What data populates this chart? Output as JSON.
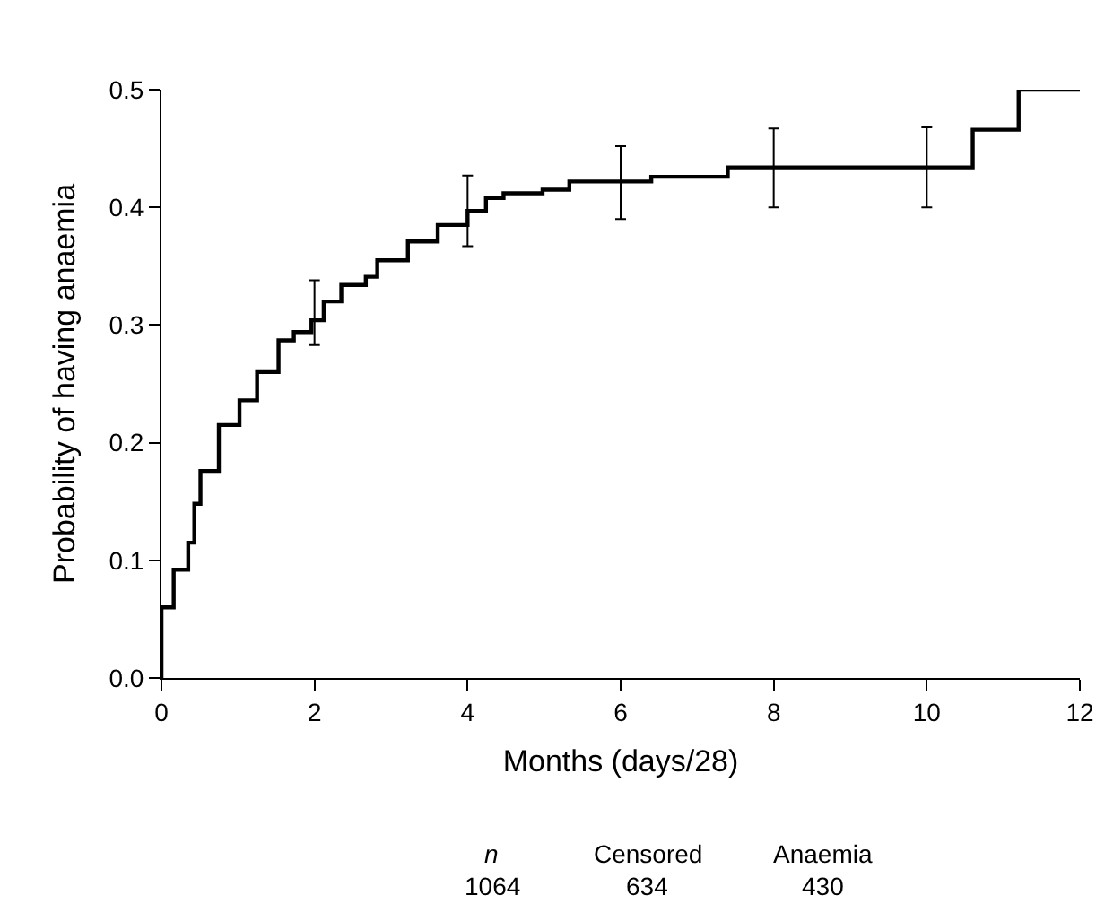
{
  "chart_data": {
    "type": "step",
    "xlabel": "Months (days/28)",
    "ylabel": "Probability of having anaemia",
    "xlim": [
      0,
      12
    ],
    "xticks": [
      0,
      2,
      4,
      6,
      8,
      10,
      12
    ],
    "ylim": [
      0,
      0.5
    ],
    "yticks": [
      {
        "value": 0,
        "label": "0.0"
      },
      0.1,
      0.2,
      0.3,
      0.4,
      0.5
    ],
    "grid": false,
    "line_style": "solid",
    "series": [
      {
        "color": "#000000",
        "x": [
          0,
          0.001,
          0.16,
          0.35,
          0.43,
          0.51,
          0.75,
          1.02,
          1.25,
          1.53,
          1.73,
          1.96,
          2,
          2.12,
          2.35,
          2.67,
          2.82,
          3.22,
          3.61,
          4.0,
          4.24,
          4.47,
          4.98,
          5.33,
          6,
          6.4,
          7.4,
          8,
          10,
          10.6,
          11.2,
          12
        ],
        "values": [
          0,
          0.06,
          0.092,
          0.115,
          0.148,
          0.176,
          0.215,
          0.236,
          0.26,
          0.287,
          0.294,
          0.304,
          0.304,
          0.32,
          0.334,
          0.341,
          0.355,
          0.371,
          0.385,
          0.397,
          0.408,
          0.412,
          0.415,
          0.422,
          0.422,
          0.426,
          0.434,
          0.434,
          0.434,
          0.466,
          0.5,
          0.5
        ],
        "errors": [
          null,
          null,
          null,
          null,
          null,
          null,
          null,
          null,
          null,
          null,
          null,
          null,
          [
            0.283,
            0.338
          ],
          null,
          null,
          null,
          null,
          null,
          null,
          [
            0.367,
            0.427
          ],
          null,
          null,
          null,
          null,
          [
            0.39,
            0.452
          ],
          null,
          null,
          [
            0.4,
            0.467
          ],
          [
            0.4,
            0.468
          ],
          null,
          null,
          null
        ]
      }
    ],
    "annotations": [
      "n",
      "Censored",
      "Anaemia",
      "1064",
      "634",
      "430"
    ]
  }
}
